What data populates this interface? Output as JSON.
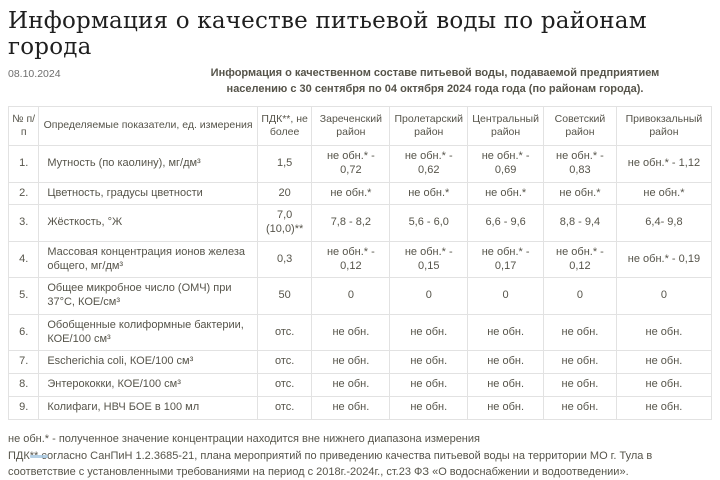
{
  "page": {
    "title": "Информация о качестве питьевой воды по районам города",
    "date": "08.10.2024",
    "subtitle": "Информация о качественном составе питьевой воды, подаваемой предприятием населению с 30 сентября по 04 октября 2024 года года (по районам города)."
  },
  "table": {
    "columns": [
      "№ п/п",
      "Определяемые показатели, ед. измерения",
      "ПДК**, не более",
      "Зареченский район",
      "Пролетарский район",
      "Центральный район",
      "Советский район",
      "Привокзальный район"
    ],
    "rows": [
      {
        "num": "1.",
        "indicator": "Мутность (по каолину), мг/дм³",
        "pdk": "1,5",
        "values": [
          "не обн.* - 0,72",
          "не обн.* - 0,62",
          "не обн.* - 0,69",
          "не обн.* - 0,83",
          "не обн.* - 1,12"
        ]
      },
      {
        "num": "2.",
        "indicator": "Цветность, градусы цветности",
        "pdk": "20",
        "values": [
          "не обн.*",
          "не обн.*",
          "не обн.*",
          "не обн.*",
          "не обн.*"
        ]
      },
      {
        "num": "3.",
        "indicator": "Жёсткость, °Ж",
        "pdk": "7,0 (10,0)**",
        "values": [
          "7,8 - 8,2",
          "5,6 - 6,0",
          "6,6 - 9,6",
          "8,8 - 9,4",
          "6,4- 9,8"
        ]
      },
      {
        "num": "4.",
        "indicator": "Массовая концентрация ионов железа общего, мг/дм³",
        "pdk": "0,3",
        "values": [
          "не обн.* - 0,12",
          "не обн.* - 0,15",
          "не обн.* - 0,17",
          "не обн.* - 0,12",
          "не обн.* - 0,19"
        ]
      },
      {
        "num": "5.",
        "indicator": "Общее микробное число (ОМЧ) при 37°С, КОЕ/см³",
        "pdk": "50",
        "values": [
          "0",
          "0",
          "0",
          "0",
          "0"
        ]
      },
      {
        "num": "6.",
        "indicator": "Обобщенные колиформные бактерии, КОЕ/100 см³",
        "pdk": "отс.",
        "values": [
          "не обн.",
          "не обн.",
          "не обн.",
          "не обн.",
          "не обн."
        ]
      },
      {
        "num": "7.",
        "indicator": "Escherichia coli, КОЕ/100 см³",
        "pdk": "отс.",
        "values": [
          "не обн.",
          "не обн.",
          "не обн.",
          "не обн.",
          "не обн."
        ]
      },
      {
        "num": "8.",
        "indicator": "Энтерококки, КОЕ/100 см³",
        "pdk": "отс.",
        "values": [
          "не обн.",
          "не обн.",
          "не обн.",
          "не обн.",
          "не обн."
        ]
      },
      {
        "num": "9.",
        "indicator": "Колифаги, НВЧ БОЕ в 100 мл",
        "pdk": "отс.",
        "values": [
          "не обн.",
          "не обн.",
          "не обн.",
          "не обн.",
          "не обн."
        ]
      }
    ]
  },
  "footnotes": [
    "не обн.* - полученное значение концентрации находится вне нижнего диапазона измерения",
    "ПДК** согласно СанПиН 1.2.3685-21, плана мероприятий по приведению качества питьевой воды на территории МО г. Тула в соответствие с установленными требованиями на период с 2018г.-2024г., ст.23 ФЗ «О водоснабжении и водоотведении»."
  ]
}
